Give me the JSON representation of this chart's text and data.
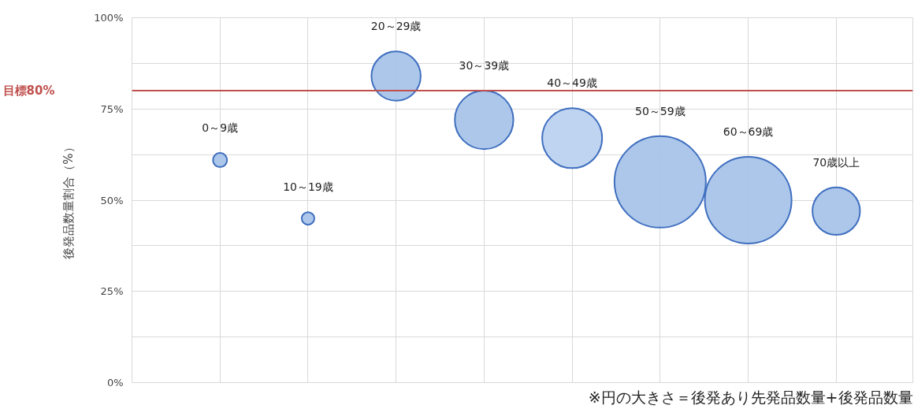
{
  "chart_data": {
    "type": "bubble",
    "categories": [
      "0～9歳",
      "10～19歳",
      "20～29歳",
      "30～39歳",
      "40～49歳",
      "50～59歳",
      "60～69歳",
      "70歳以上"
    ],
    "values": [
      61,
      45,
      84,
      72,
      67,
      55,
      50,
      47
    ],
    "sizes": [
      0.024,
      0.019,
      0.29,
      0.41,
      0.43,
      1,
      0.9,
      0.27
    ],
    "colors": [
      "#a9c4ea",
      "#a9c4ea",
      "#a9c4ea",
      "#a9c4ea",
      "#bcd2f0",
      "#a9c4ea",
      "#a9c4ea",
      "#a9c4ea"
    ],
    "ylabel": "後発品数量割合（%）",
    "ylim": [
      0,
      100
    ],
    "yticks": [
      {
        "value": 0,
        "label": "0%"
      },
      {
        "value": 12.5,
        "label": null
      },
      {
        "value": 25,
        "label": "25%"
      },
      {
        "value": 37.5,
        "label": null
      },
      {
        "value": 50,
        "label": "50%"
      },
      {
        "value": 62.5,
        "label": null
      },
      {
        "value": 75,
        "label": "75%"
      },
      {
        "value": 87.5,
        "label": null
      },
      {
        "value": 100,
        "label": "100%"
      }
    ],
    "tick_labels": "y",
    "grid": true,
    "ref_lines": [
      {
        "axis": "y",
        "value": 80,
        "label": "目標80%",
        "color": "#c0504d"
      }
    ],
    "annotations": [
      "※円の大きさ＝後発あり先発品数量+後発品数量"
    ]
  }
}
